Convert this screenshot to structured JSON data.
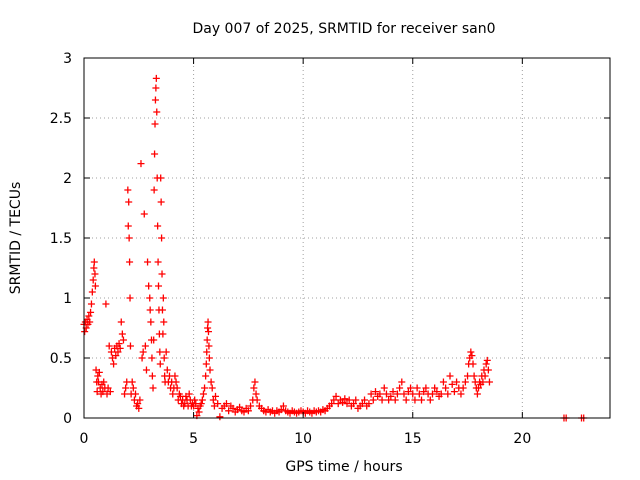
{
  "chart_data": {
    "type": "scatter",
    "title": "Day 007 of 2025, SRMTID for receiver san0",
    "xlabel": "GPS time / hours",
    "ylabel": "SRMTID / TECUs",
    "xlim": [
      0,
      24
    ],
    "ylim": [
      0,
      3
    ],
    "xticks": [
      0,
      5,
      10,
      15,
      20
    ],
    "yticks": [
      0,
      0.5,
      1,
      1.5,
      2,
      2.5,
      3
    ],
    "xtick_labels": [
      "0",
      "5",
      "10",
      "15",
      "20"
    ],
    "ytick_labels": [
      "0",
      "0.5",
      "1",
      "1.5",
      "2",
      "2.5",
      "3"
    ],
    "grid": true,
    "marker": "+",
    "series": [
      {
        "name": "SRMTID",
        "color": "#ff0000",
        "points": [
          [
            0.0,
            0.78
          ],
          [
            0.03,
            0.72
          ],
          [
            0.06,
            0.8
          ],
          [
            0.1,
            0.75
          ],
          [
            0.14,
            0.82
          ],
          [
            0.18,
            0.78
          ],
          [
            0.22,
            0.85
          ],
          [
            0.26,
            0.8
          ],
          [
            0.3,
            0.88
          ],
          [
            0.34,
            0.95
          ],
          [
            0.38,
            1.05
          ],
          [
            0.42,
            1.15
          ],
          [
            0.45,
            1.25
          ],
          [
            0.47,
            1.3
          ],
          [
            0.5,
            1.2
          ],
          [
            0.52,
            1.1
          ],
          [
            0.55,
            0.4
          ],
          [
            0.58,
            0.3
          ],
          [
            0.6,
            0.22
          ],
          [
            0.63,
            0.35
          ],
          [
            0.66,
            0.3
          ],
          [
            0.7,
            0.38
          ],
          [
            0.74,
            0.25
          ],
          [
            0.78,
            0.2
          ],
          [
            0.82,
            0.28
          ],
          [
            0.86,
            0.22
          ],
          [
            0.9,
            0.3
          ],
          [
            0.95,
            0.25
          ],
          [
            1.0,
            0.95
          ],
          [
            1.05,
            0.2
          ],
          [
            1.1,
            0.25
          ],
          [
            1.15,
            0.6
          ],
          [
            1.2,
            0.22
          ],
          [
            1.25,
            0.55
          ],
          [
            1.3,
            0.5
          ],
          [
            1.35,
            0.45
          ],
          [
            1.4,
            0.58
          ],
          [
            1.45,
            0.52
          ],
          [
            1.5,
            0.6
          ],
          [
            1.55,
            0.55
          ],
          [
            1.6,
            0.62
          ],
          [
            1.65,
            0.58
          ],
          [
            1.7,
            0.8
          ],
          [
            1.75,
            0.7
          ],
          [
            1.8,
            0.65
          ],
          [
            1.85,
            0.2
          ],
          [
            1.9,
            0.25
          ],
          [
            1.95,
            0.3
          ],
          [
            2.0,
            1.9
          ],
          [
            2.02,
            1.6
          ],
          [
            2.04,
            1.8
          ],
          [
            2.06,
            1.5
          ],
          [
            2.08,
            1.3
          ],
          [
            2.1,
            1.0
          ],
          [
            2.12,
            0.6
          ],
          [
            2.15,
            0.2
          ],
          [
            2.2,
            0.3
          ],
          [
            2.25,
            0.25
          ],
          [
            2.3,
            0.15
          ],
          [
            2.35,
            0.2
          ],
          [
            2.4,
            0.1
          ],
          [
            2.45,
            0.12
          ],
          [
            2.5,
            0.08
          ],
          [
            2.55,
            0.15
          ],
          [
            2.6,
            2.12
          ],
          [
            2.65,
            0.5
          ],
          [
            2.7,
            0.55
          ],
          [
            2.75,
            1.7
          ],
          [
            2.8,
            0.6
          ],
          [
            2.85,
            0.4
          ],
          [
            2.9,
            1.3
          ],
          [
            2.95,
            1.1
          ],
          [
            3.0,
            1.0
          ],
          [
            3.02,
            0.9
          ],
          [
            3.05,
            0.8
          ],
          [
            3.08,
            0.65
          ],
          [
            3.1,
            0.5
          ],
          [
            3.12,
            0.35
          ],
          [
            3.15,
            0.25
          ],
          [
            3.18,
            0.65
          ],
          [
            3.2,
            1.9
          ],
          [
            3.22,
            2.2
          ],
          [
            3.24,
            2.45
          ],
          [
            3.26,
            2.65
          ],
          [
            3.28,
            2.75
          ],
          [
            3.3,
            2.83
          ],
          [
            3.32,
            2.55
          ],
          [
            3.34,
            2.0
          ],
          [
            3.36,
            1.6
          ],
          [
            3.38,
            1.3
          ],
          [
            3.4,
            1.1
          ],
          [
            3.42,
            0.9
          ],
          [
            3.44,
            0.7
          ],
          [
            3.46,
            0.55
          ],
          [
            3.48,
            0.45
          ],
          [
            3.5,
            2.0
          ],
          [
            3.52,
            1.8
          ],
          [
            3.54,
            1.5
          ],
          [
            3.56,
            1.2
          ],
          [
            3.58,
            0.9
          ],
          [
            3.6,
            0.7
          ],
          [
            3.62,
            1.0
          ],
          [
            3.64,
            0.8
          ],
          [
            3.66,
            0.5
          ],
          [
            3.68,
            0.35
          ],
          [
            3.7,
            0.3
          ],
          [
            3.75,
            0.55
          ],
          [
            3.8,
            0.4
          ],
          [
            3.85,
            0.3
          ],
          [
            3.9,
            0.35
          ],
          [
            3.95,
            0.25
          ],
          [
            4.0,
            0.3
          ],
          [
            4.05,
            0.2
          ],
          [
            4.1,
            0.25
          ],
          [
            4.15,
            0.35
          ],
          [
            4.2,
            0.3
          ],
          [
            4.25,
            0.25
          ],
          [
            4.3,
            0.15
          ],
          [
            4.35,
            0.2
          ],
          [
            4.4,
            0.18
          ],
          [
            4.45,
            0.12
          ],
          [
            4.5,
            0.15
          ],
          [
            4.55,
            0.1
          ],
          [
            4.6,
            0.12
          ],
          [
            4.65,
            0.18
          ],
          [
            4.7,
            0.15
          ],
          [
            4.75,
            0.1
          ],
          [
            4.8,
            0.2
          ],
          [
            4.85,
            0.15
          ],
          [
            4.9,
            0.1
          ],
          [
            4.95,
            0.12
          ],
          [
            5.0,
            0.1
          ],
          [
            5.05,
            0.15
          ],
          [
            5.1,
            0.12
          ],
          [
            5.15,
            0.02
          ],
          [
            5.2,
            0.08
          ],
          [
            5.25,
            0.05
          ],
          [
            5.3,
            0.1
          ],
          [
            5.35,
            0.12
          ],
          [
            5.4,
            0.15
          ],
          [
            5.45,
            0.2
          ],
          [
            5.5,
            0.25
          ],
          [
            5.55,
            0.35
          ],
          [
            5.58,
            0.45
          ],
          [
            5.6,
            0.55
          ],
          [
            5.62,
            0.65
          ],
          [
            5.64,
            0.75
          ],
          [
            5.66,
            0.8
          ],
          [
            5.68,
            0.72
          ],
          [
            5.7,
            0.6
          ],
          [
            5.72,
            0.5
          ],
          [
            5.75,
            0.4
          ],
          [
            5.8,
            0.3
          ],
          [
            5.85,
            0.25
          ],
          [
            5.9,
            0.15
          ],
          [
            5.95,
            0.1
          ],
          [
            6.0,
            0.18
          ],
          [
            6.1,
            0.12
          ],
          [
            6.2,
            0.01
          ],
          [
            6.3,
            0.08
          ],
          [
            6.4,
            0.1
          ],
          [
            6.5,
            0.12
          ],
          [
            6.6,
            0.06
          ],
          [
            6.7,
            0.1
          ],
          [
            6.8,
            0.08
          ],
          [
            6.9,
            0.05
          ],
          [
            7.0,
            0.07
          ],
          [
            7.1,
            0.09
          ],
          [
            7.2,
            0.06
          ],
          [
            7.3,
            0.05
          ],
          [
            7.4,
            0.08
          ],
          [
            7.5,
            0.06
          ],
          [
            7.6,
            0.1
          ],
          [
            7.7,
            0.15
          ],
          [
            7.75,
            0.25
          ],
          [
            7.8,
            0.3
          ],
          [
            7.85,
            0.2
          ],
          [
            7.9,
            0.15
          ],
          [
            8.0,
            0.1
          ],
          [
            8.1,
            0.08
          ],
          [
            8.2,
            0.06
          ],
          [
            8.3,
            0.05
          ],
          [
            8.4,
            0.07
          ],
          [
            8.5,
            0.05
          ],
          [
            8.6,
            0.06
          ],
          [
            8.7,
            0.04
          ],
          [
            8.8,
            0.06
          ],
          [
            8.9,
            0.05
          ],
          [
            9.0,
            0.07
          ],
          [
            9.1,
            0.1
          ],
          [
            9.2,
            0.06
          ],
          [
            9.3,
            0.05
          ],
          [
            9.4,
            0.04
          ],
          [
            9.5,
            0.06
          ],
          [
            9.6,
            0.05
          ],
          [
            9.7,
            0.04
          ],
          [
            9.8,
            0.05
          ],
          [
            9.9,
            0.06
          ],
          [
            10.0,
            0.05
          ],
          [
            10.1,
            0.04
          ],
          [
            10.2,
            0.06
          ],
          [
            10.3,
            0.05
          ],
          [
            10.4,
            0.04
          ],
          [
            10.5,
            0.06
          ],
          [
            10.6,
            0.05
          ],
          [
            10.7,
            0.06
          ],
          [
            10.8,
            0.05
          ],
          [
            10.9,
            0.07
          ],
          [
            11.0,
            0.06
          ],
          [
            11.1,
            0.08
          ],
          [
            11.2,
            0.1
          ],
          [
            11.3,
            0.12
          ],
          [
            11.4,
            0.15
          ],
          [
            11.5,
            0.18
          ],
          [
            11.6,
            0.12
          ],
          [
            11.7,
            0.15
          ],
          [
            11.8,
            0.13
          ],
          [
            11.9,
            0.16
          ],
          [
            12.0,
            0.12
          ],
          [
            12.1,
            0.15
          ],
          [
            12.2,
            0.1
          ],
          [
            12.3,
            0.12
          ],
          [
            12.4,
            0.15
          ],
          [
            12.5,
            0.08
          ],
          [
            12.6,
            0.1
          ],
          [
            12.7,
            0.12
          ],
          [
            12.8,
            0.15
          ],
          [
            12.9,
            0.1
          ],
          [
            13.0,
            0.12
          ],
          [
            13.1,
            0.2
          ],
          [
            13.2,
            0.15
          ],
          [
            13.3,
            0.22
          ],
          [
            13.4,
            0.18
          ],
          [
            13.5,
            0.2
          ],
          [
            13.6,
            0.15
          ],
          [
            13.7,
            0.25
          ],
          [
            13.8,
            0.2
          ],
          [
            13.9,
            0.15
          ],
          [
            14.0,
            0.18
          ],
          [
            14.1,
            0.22
          ],
          [
            14.2,
            0.15
          ],
          [
            14.3,
            0.2
          ],
          [
            14.4,
            0.25
          ],
          [
            14.5,
            0.3
          ],
          [
            14.6,
            0.2
          ],
          [
            14.7,
            0.15
          ],
          [
            14.8,
            0.22
          ],
          [
            14.9,
            0.25
          ],
          [
            15.0,
            0.2
          ],
          [
            15.1,
            0.15
          ],
          [
            15.2,
            0.25
          ],
          [
            15.3,
            0.2
          ],
          [
            15.4,
            0.15
          ],
          [
            15.5,
            0.22
          ],
          [
            15.6,
            0.25
          ],
          [
            15.7,
            0.2
          ],
          [
            15.8,
            0.15
          ],
          [
            15.9,
            0.2
          ],
          [
            16.0,
            0.25
          ],
          [
            16.1,
            0.22
          ],
          [
            16.2,
            0.18
          ],
          [
            16.3,
            0.2
          ],
          [
            16.4,
            0.3
          ],
          [
            16.5,
            0.25
          ],
          [
            16.6,
            0.2
          ],
          [
            16.7,
            0.35
          ],
          [
            16.8,
            0.28
          ],
          [
            16.9,
            0.22
          ],
          [
            17.0,
            0.3
          ],
          [
            17.1,
            0.25
          ],
          [
            17.2,
            0.2
          ],
          [
            17.3,
            0.25
          ],
          [
            17.4,
            0.3
          ],
          [
            17.5,
            0.35
          ],
          [
            17.55,
            0.45
          ],
          [
            17.6,
            0.5
          ],
          [
            17.65,
            0.55
          ],
          [
            17.7,
            0.52
          ],
          [
            17.75,
            0.45
          ],
          [
            17.8,
            0.35
          ],
          [
            17.85,
            0.3
          ],
          [
            17.9,
            0.25
          ],
          [
            17.95,
            0.2
          ],
          [
            18.0,
            0.25
          ],
          [
            18.05,
            0.3
          ],
          [
            18.1,
            0.28
          ],
          [
            18.15,
            0.35
          ],
          [
            18.2,
            0.3
          ],
          [
            18.25,
            0.4
          ],
          [
            18.3,
            0.35
          ],
          [
            18.35,
            0.45
          ],
          [
            18.4,
            0.48
          ],
          [
            18.45,
            0.4
          ],
          [
            18.5,
            0.3
          ],
          [
            21.9,
            0.0
          ],
          [
            22.0,
            0.0
          ],
          [
            22.7,
            0.0
          ],
          [
            22.8,
            0.0
          ]
        ]
      }
    ]
  }
}
